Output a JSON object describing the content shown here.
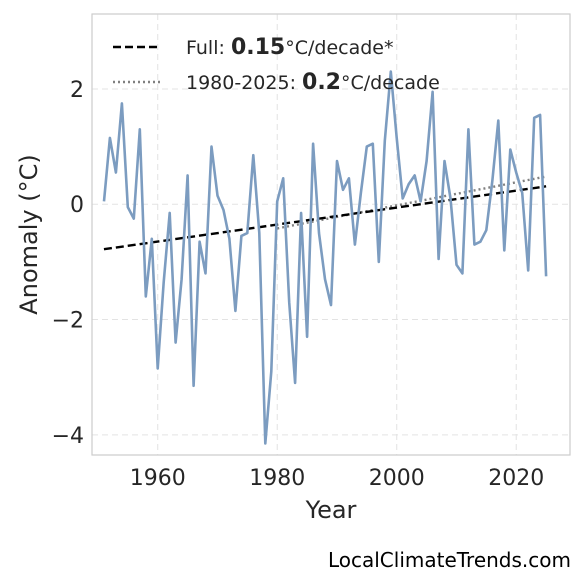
{
  "chart_data": {
    "type": "line",
    "xlabel": "Year",
    "ylabel": "Anomaly (°C)",
    "xlim": [
      1949,
      2029
    ],
    "ylim": [
      -4.35,
      3.3
    ],
    "xticks": [
      1960,
      1980,
      2000,
      2020
    ],
    "yticks": [
      -4,
      -2,
      0,
      2
    ],
    "ytick_labels": [
      "−4",
      "−2",
      "0",
      "2"
    ],
    "grid": true,
    "legend_position": "top-left",
    "colors": {
      "series": "#7c9cc0",
      "full_trend": "#000000",
      "recent_trend": "#808080"
    },
    "series": [
      {
        "x": [
          1951,
          1952,
          1953,
          1954,
          1955,
          1956,
          1957,
          1958,
          1959,
          1960,
          1961,
          1962,
          1963,
          1964,
          1965,
          1966,
          1967,
          1968,
          1969,
          1970,
          1971,
          1972,
          1973,
          1974,
          1975,
          1976,
          1977,
          1978,
          1979,
          1980,
          1981,
          1982,
          1983,
          1984,
          1985,
          1986,
          1987,
          1988,
          1989,
          1990,
          1991,
          1992,
          1993,
          1994,
          1995,
          1996,
          1997,
          1998,
          1999,
          2000,
          2001,
          2002,
          2003,
          2004,
          2005,
          2006,
          2007,
          2008,
          2009,
          2010,
          2011,
          2012,
          2013,
          2014,
          2015,
          2016,
          2017,
          2018,
          2019,
          2020,
          2021,
          2022,
          2023,
          2024,
          2025
        ],
        "values": [
          0.05,
          1.15,
          0.55,
          1.75,
          -0.05,
          -0.25,
          1.3,
          -1.6,
          -0.6,
          -2.85,
          -1.35,
          -0.15,
          -2.4,
          -1.3,
          0.5,
          -3.15,
          -0.65,
          -1.2,
          1.0,
          0.15,
          -0.1,
          -0.6,
          -1.85,
          -0.55,
          -0.5,
          0.85,
          -0.5,
          -4.15,
          -2.9,
          0.05,
          0.45,
          -1.7,
          -3.1,
          -0.15,
          -2.3,
          1.05,
          -0.5,
          -1.3,
          -1.75,
          0.75,
          0.25,
          0.45,
          -0.7,
          0.2,
          1.0,
          1.05,
          -1.0,
          1.1,
          2.3,
          1.15,
          0.1,
          0.35,
          0.5,
          0.05,
          0.75,
          1.95,
          -0.95,
          0.75,
          0.1,
          -1.05,
          -1.2,
          1.3,
          -0.7,
          -0.65,
          -0.45,
          0.4,
          1.45,
          -0.8,
          0.95,
          0.55,
          0.2,
          -1.15,
          1.5,
          1.55,
          -1.25
        ]
      },
      {
        "name": "Full: 0.15°C/decade*",
        "x": [
          1951,
          2025
        ],
        "values": [
          -0.78,
          0.31
        ]
      },
      {
        "name": "1980-2025: 0.2°C/decade",
        "x": [
          1980,
          2025
        ],
        "values": [
          -0.42,
          0.48
        ]
      }
    ],
    "legend": [
      {
        "style": "dashed",
        "color": "#000000",
        "prefix": "Full: ",
        "bold": "0.15",
        "suffix": "°C/decade*"
      },
      {
        "style": "dotted",
        "color": "#808080",
        "prefix": "1980-2025: ",
        "bold": "0.2",
        "suffix": "°C/decade"
      }
    ]
  },
  "credit": "LocalClimateTrends.com"
}
